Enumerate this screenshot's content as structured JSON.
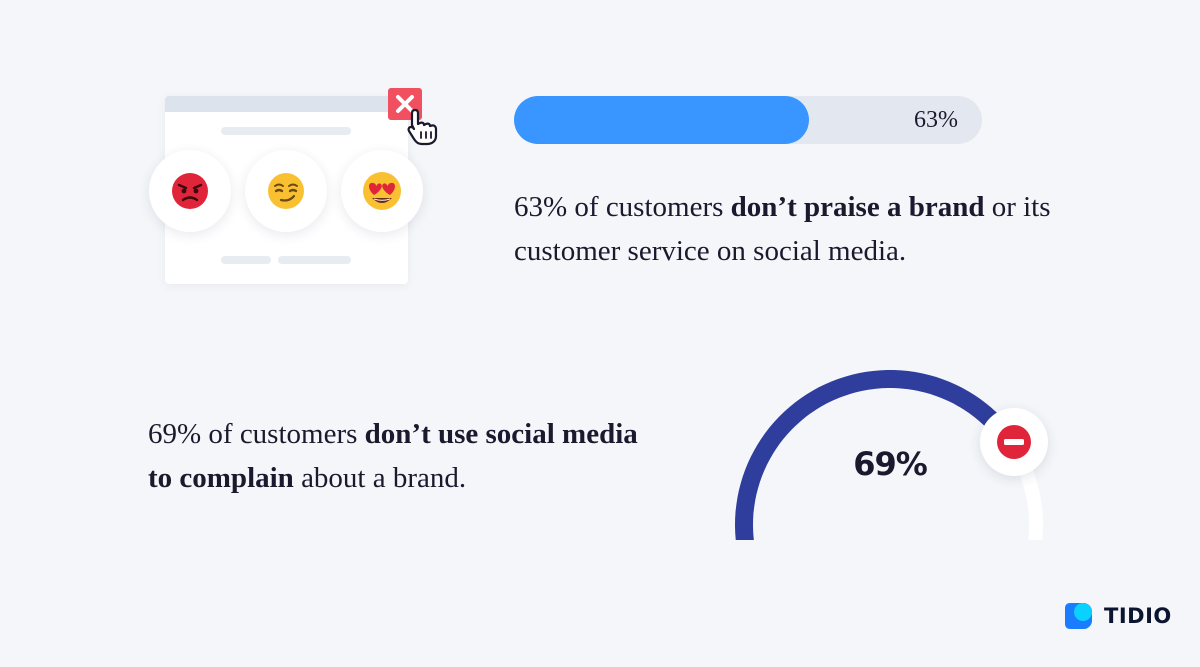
{
  "illustration": {
    "emojis": [
      "angry-face-icon",
      "smirking-face-icon",
      "heart-eyes-face-icon"
    ],
    "colors": {
      "close_button": "#f0505f",
      "emoji_yellow": "#f9c132",
      "emoji_red": "#e0253b"
    }
  },
  "stat1": {
    "percent": 63,
    "bar_label": "63%",
    "text_before": "63% of customers ",
    "text_bold": "don’t praise a brand",
    "text_after": " or its customer service on social media.",
    "colors": {
      "fill": "#3995ff",
      "track": "#e3e8f0"
    }
  },
  "stat2": {
    "percent": 69,
    "gauge_label": "69%",
    "text_before": "69% of customers ",
    "text_bold": "don’t use social media to complain",
    "text_after": " about a brand.",
    "colors": {
      "arc": "#2f3d9c",
      "track": "#ffffff",
      "stop_icon": "#e0253b"
    }
  },
  "brand": {
    "name": "TIDIO",
    "colors": {
      "primary": "#1a7cff",
      "secondary": "#0bd1ff"
    }
  }
}
